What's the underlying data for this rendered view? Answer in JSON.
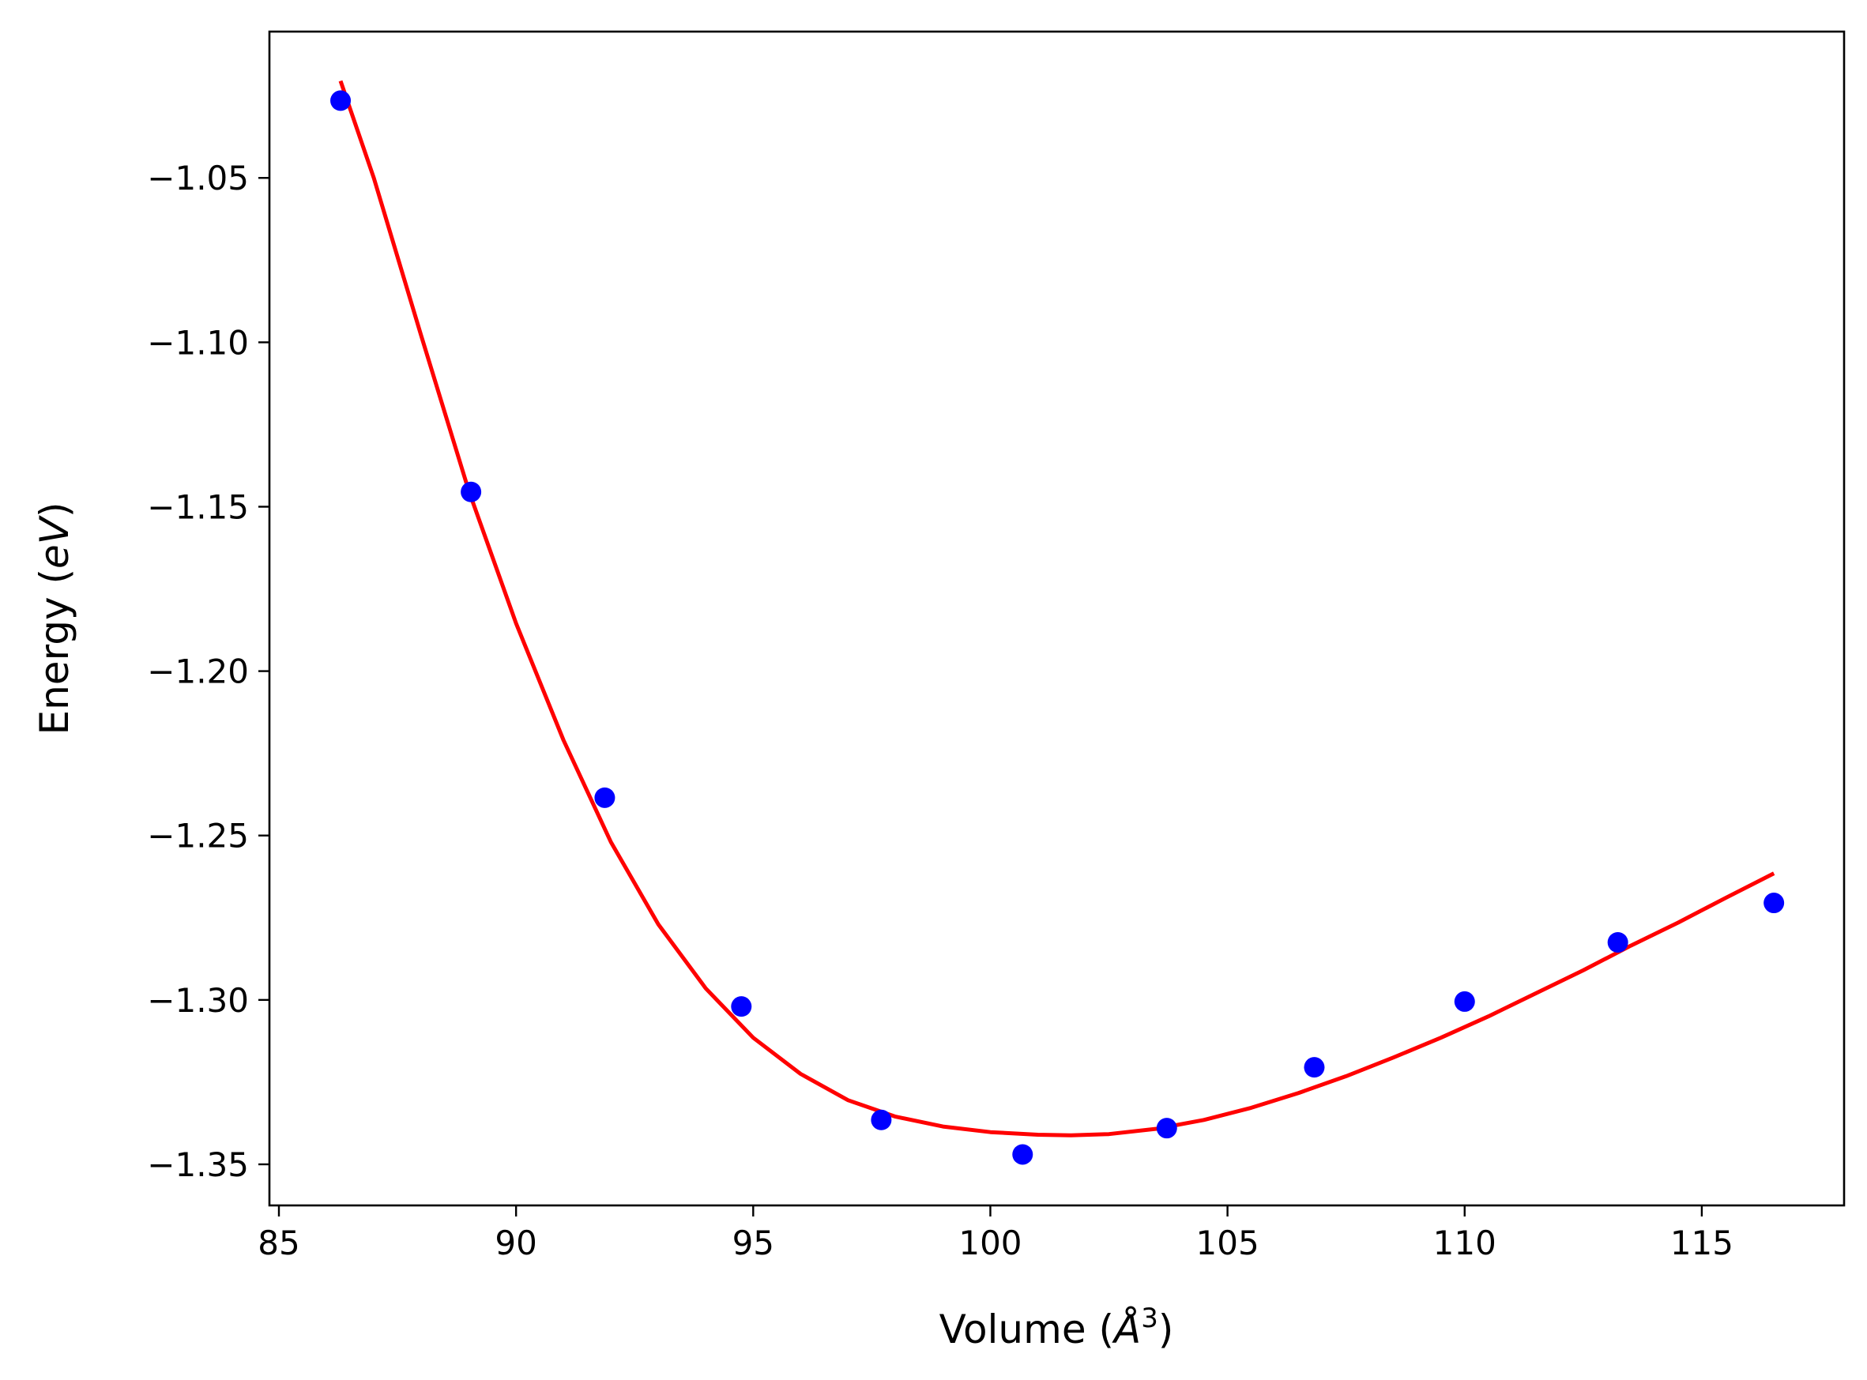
{
  "chart_data": {
    "type": "scatter",
    "xlabel_parts": [
      "Volume (",
      "Å",
      "3",
      ")"
    ],
    "ylabel_parts": [
      "Energy (",
      "eV",
      ")"
    ],
    "xlim": [
      84.8,
      118.0
    ],
    "ylim": [
      -1.3625,
      -1.0055
    ],
    "xticks": [
      85,
      90,
      95,
      100,
      105,
      110,
      115
    ],
    "xtick_labels": [
      "85",
      "90",
      "95",
      "100",
      "105",
      "110",
      "115"
    ],
    "yticks": [
      -1.35,
      -1.3,
      -1.25,
      -1.2,
      -1.15,
      -1.1,
      -1.05
    ],
    "ytick_labels": [
      "−1.35",
      "−1.30",
      "−1.25",
      "−1.20",
      "−1.15",
      "−1.10",
      "−1.05"
    ],
    "grid": false,
    "series": [
      {
        "kind": "points",
        "color": "#0000ff",
        "x": [
          86.3,
          89.05,
          91.87,
          94.75,
          97.7,
          100.68,
          103.72,
          106.83,
          110.0,
          113.23,
          116.52
        ],
        "y": [
          -1.0265,
          -1.1455,
          -1.2385,
          -1.302,
          -1.3365,
          -1.347,
          -1.339,
          -1.3205,
          -1.3005,
          -1.2825,
          -1.2705
        ]
      },
      {
        "kind": "fit-line",
        "color": "#ff0000",
        "x": [
          86.3,
          87.0,
          88.0,
          89.0,
          90.0,
          91.0,
          92.0,
          93.0,
          94.0,
          95.0,
          96.0,
          97.0,
          98.0,
          99.0,
          100.0,
          101.0,
          101.7,
          102.5,
          103.5,
          104.5,
          105.5,
          106.5,
          107.5,
          108.5,
          109.5,
          110.5,
          111.5,
          112.5,
          113.5,
          114.5,
          115.5,
          116.52
        ],
        "y": [
          -1.0205,
          -1.05,
          -1.098,
          -1.145,
          -1.1855,
          -1.221,
          -1.252,
          -1.277,
          -1.2965,
          -1.3115,
          -1.3225,
          -1.3305,
          -1.3355,
          -1.3385,
          -1.3402,
          -1.341,
          -1.3412,
          -1.3408,
          -1.3392,
          -1.3365,
          -1.3328,
          -1.3283,
          -1.3232,
          -1.3175,
          -1.3115,
          -1.305,
          -1.298,
          -1.291,
          -1.2835,
          -1.2765,
          -1.269,
          -1.2615
        ]
      }
    ]
  }
}
